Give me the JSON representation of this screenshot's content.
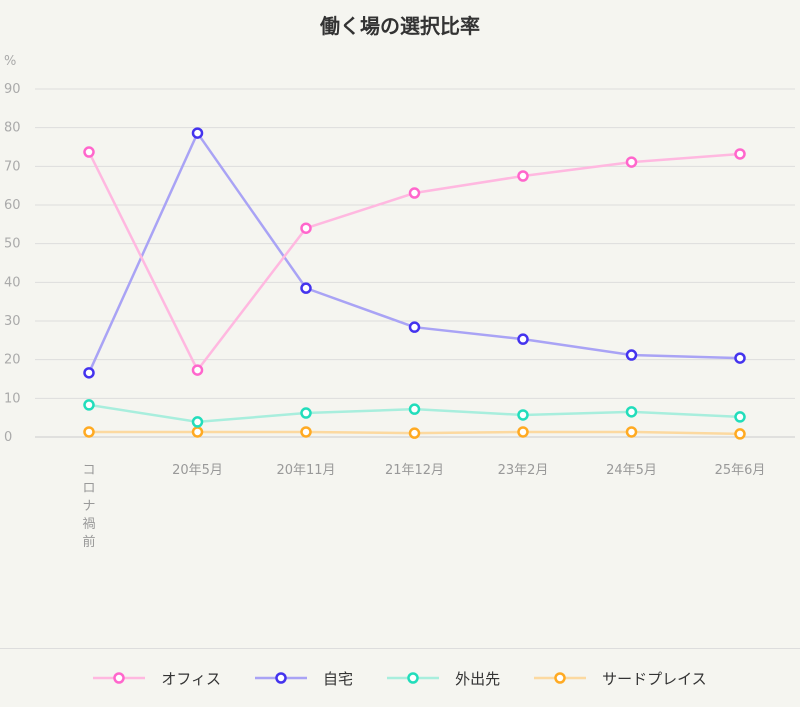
{
  "chart_data": {
    "type": "line",
    "title": "働く場の選択比率",
    "ylabel": "%",
    "ylim": [
      0,
      90
    ],
    "yticks": [
      0,
      10,
      20,
      30,
      40,
      50,
      60,
      70,
      80,
      90
    ],
    "grid": true,
    "legend_position": "bottom",
    "categories": [
      "コロナ禍前",
      "20年5月",
      "20年11月",
      "21年12月",
      "23年2月",
      "24年5月",
      "25年6月"
    ],
    "series": [
      {
        "name": "オフィス",
        "color": "#ff66cc",
        "line_color": "#ffb8e0",
        "values": [
          73.7,
          17.3,
          54.0,
          63.1,
          67.5,
          71.1,
          73.2
        ]
      },
      {
        "name": "自宅",
        "color": "#4433ee",
        "line_color": "#a9a3f5",
        "values": [
          16.6,
          78.6,
          38.5,
          28.4,
          25.3,
          21.2,
          20.4
        ]
      },
      {
        "name": "外出先",
        "color": "#22ddbb",
        "line_color": "#a8eedd",
        "values": [
          8.3,
          3.9,
          6.2,
          7.2,
          5.7,
          6.5,
          5.2
        ]
      },
      {
        "name": "サードプレイス",
        "color": "#ffaa22",
        "line_color": "#fcd9a0",
        "values": [
          1.3,
          1.3,
          1.3,
          1.0,
          1.3,
          1.3,
          0.8
        ]
      }
    ]
  }
}
